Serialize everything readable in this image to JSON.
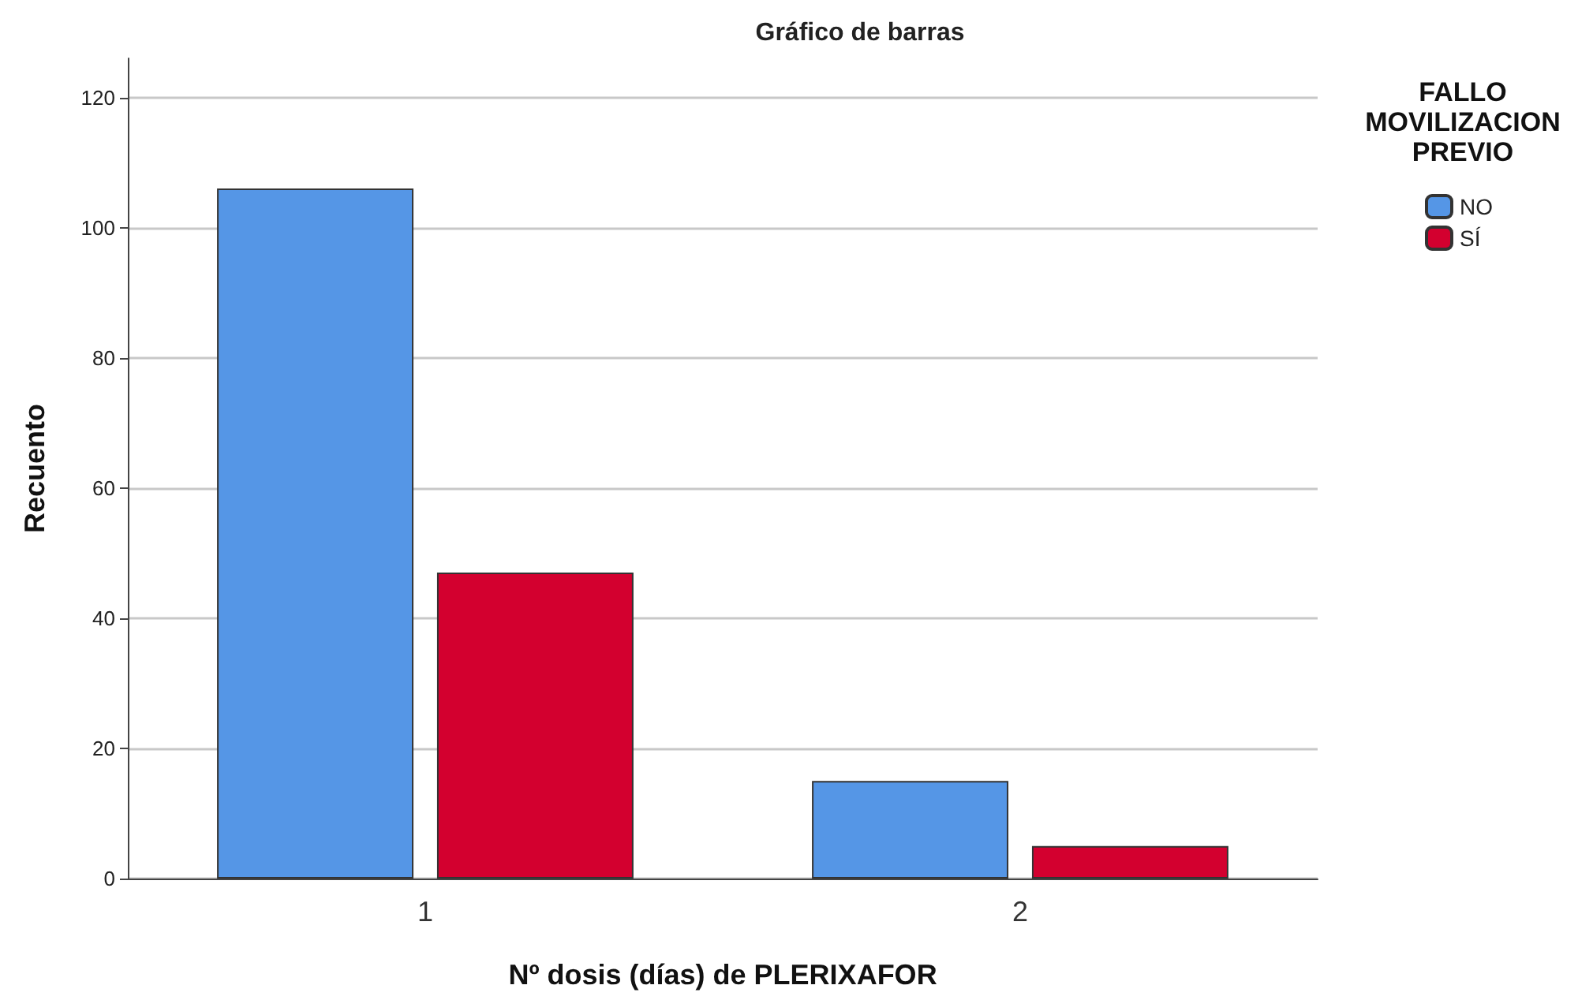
{
  "chart_data": {
    "type": "bar",
    "title": "Gráfico de barras",
    "xlabel": "Nº dosis (días) de PLERIXAFOR",
    "ylabel": "Recuento",
    "legend_title": "FALLO\nMOVILIZACION\nPREVIO",
    "categories": [
      "1",
      "2"
    ],
    "series": [
      {
        "name": "NO",
        "color": "#5596e6",
        "values": [
          106,
          15
        ]
      },
      {
        "name": "SÍ",
        "color": "#d3002f",
        "values": [
          47,
          5
        ]
      }
    ],
    "ylim": [
      0,
      126
    ],
    "yticks": [
      0,
      20,
      40,
      60,
      80,
      100,
      120
    ],
    "grid": "y",
    "legend": "top right"
  }
}
